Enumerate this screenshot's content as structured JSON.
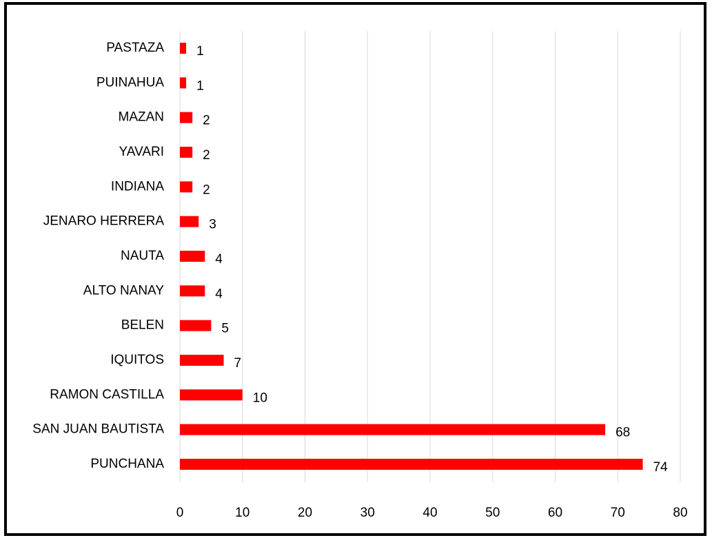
{
  "chart_data": {
    "type": "bar",
    "orientation": "horizontal",
    "categories": [
      "PASTAZA",
      "PUINAHUA",
      "MAZAN",
      "YAVARI",
      "INDIANA",
      "JENARO HERRERA",
      "NAUTA",
      "ALTO NANAY",
      "BELEN",
      "IQUITOS",
      "RAMON CASTILLA",
      "SAN JUAN BAUTISTA",
      "PUNCHANA"
    ],
    "values": [
      1,
      1,
      2,
      2,
      2,
      3,
      4,
      4,
      5,
      7,
      10,
      68,
      74
    ],
    "color": "#ff0000",
    "xlim": [
      0,
      80
    ],
    "xticks": [
      0,
      10,
      20,
      30,
      40,
      50,
      60,
      70,
      80
    ],
    "grid": true
  }
}
